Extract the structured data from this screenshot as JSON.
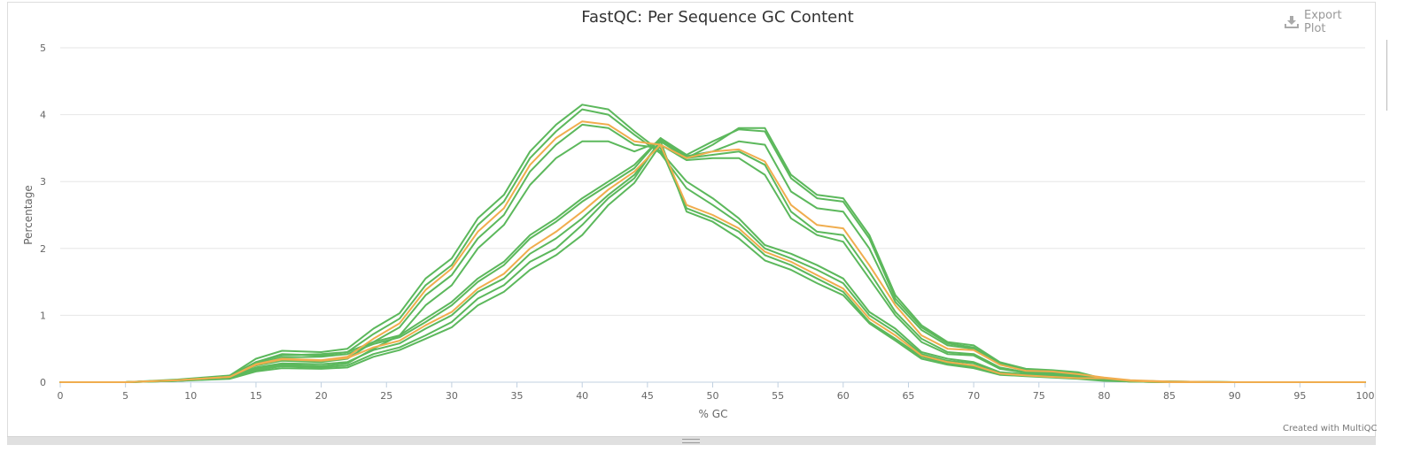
{
  "header": {
    "title": "FastQC: Per Sequence GC Content",
    "export_label": "Export Plot"
  },
  "footer": {
    "credit": "Created with MultiQC"
  },
  "colors": {
    "pass": "#5cb85c",
    "warn": "#f0ad4e",
    "grid": "#e6e6e6",
    "axis_text": "#666666"
  },
  "chart_data": {
    "type": "line",
    "title": "FastQC: Per Sequence GC Content",
    "xlabel": "% GC",
    "ylabel": "Percentage",
    "xlim": [
      0,
      100
    ],
    "ylim": [
      0,
      5
    ],
    "x_ticks": [
      0,
      5,
      10,
      15,
      20,
      25,
      30,
      35,
      40,
      45,
      50,
      55,
      60,
      65,
      70,
      75,
      80,
      85,
      90,
      95,
      100
    ],
    "y_ticks": [
      0,
      1,
      2,
      3,
      4,
      5
    ],
    "grid": true,
    "legend": "none",
    "x": [
      0,
      5,
      9,
      13,
      15,
      17,
      20,
      22,
      24,
      26,
      28,
      30,
      32,
      34,
      36,
      38,
      40,
      42,
      44,
      46,
      48,
      50,
      52,
      54,
      56,
      58,
      60,
      62,
      64,
      66,
      68,
      70,
      72,
      74,
      76,
      78,
      80,
      82,
      85,
      90,
      100
    ],
    "series": [
      {
        "status": "pass",
        "values": [
          0,
          0,
          0.04,
          0.1,
          0.35,
          0.47,
          0.45,
          0.5,
          0.8,
          1.03,
          1.55,
          1.85,
          2.45,
          2.8,
          3.45,
          3.85,
          4.15,
          4.08,
          3.75,
          3.45,
          3.0,
          2.75,
          2.45,
          2.05,
          1.92,
          1.75,
          1.55,
          1.05,
          0.8,
          0.45,
          0.35,
          0.3,
          0.15,
          0.12,
          0.1,
          0.08,
          0.04,
          0.02,
          0,
          0,
          0
        ]
      },
      {
        "status": "pass",
        "values": [
          0,
          0,
          0.03,
          0.09,
          0.3,
          0.42,
          0.4,
          0.45,
          0.72,
          0.95,
          1.45,
          1.75,
          2.35,
          2.7,
          3.35,
          3.75,
          4.08,
          4.0,
          3.7,
          3.42,
          2.9,
          2.65,
          2.38,
          2.0,
          1.85,
          1.68,
          1.48,
          1.0,
          0.75,
          0.42,
          0.32,
          0.28,
          0.14,
          0.11,
          0.09,
          0.07,
          0.03,
          0.01,
          0,
          0,
          0
        ]
      },
      {
        "status": "warn",
        "values": [
          0,
          0,
          0.03,
          0.08,
          0.27,
          0.35,
          0.33,
          0.38,
          0.65,
          0.88,
          1.38,
          1.7,
          2.25,
          2.6,
          3.25,
          3.65,
          3.9,
          3.85,
          3.6,
          3.55,
          2.65,
          2.5,
          2.3,
          1.95,
          1.8,
          1.6,
          1.4,
          0.95,
          0.7,
          0.4,
          0.3,
          0.25,
          0.13,
          0.1,
          0.08,
          0.06,
          0.06,
          0.02,
          0,
          0,
          0
        ]
      },
      {
        "status": "pass",
        "values": [
          0,
          0,
          0.03,
          0.08,
          0.25,
          0.32,
          0.3,
          0.35,
          0.6,
          0.82,
          1.3,
          1.6,
          2.15,
          2.5,
          3.15,
          3.55,
          3.85,
          3.8,
          3.55,
          3.5,
          2.6,
          2.45,
          2.25,
          1.9,
          1.75,
          1.55,
          1.35,
          0.9,
          0.65,
          0.38,
          0.28,
          0.23,
          0.12,
          0.1,
          0.08,
          0.06,
          0.03,
          0.01,
          0,
          0,
          0
        ]
      },
      {
        "status": "pass",
        "values": [
          0,
          0,
          0.02,
          0.07,
          0.2,
          0.26,
          0.24,
          0.28,
          0.5,
          0.7,
          1.15,
          1.45,
          2.0,
          2.35,
          2.95,
          3.35,
          3.6,
          3.6,
          3.45,
          3.6,
          2.55,
          2.4,
          2.15,
          1.82,
          1.68,
          1.48,
          1.3,
          0.88,
          0.62,
          0.35,
          0.26,
          0.21,
          0.11,
          0.09,
          0.07,
          0.05,
          0.02,
          0.01,
          0,
          0,
          0
        ]
      },
      {
        "status": "pass",
        "values": [
          0,
          0,
          0.03,
          0.09,
          0.3,
          0.4,
          0.42,
          0.45,
          0.6,
          0.7,
          0.95,
          1.2,
          1.55,
          1.8,
          2.2,
          2.45,
          2.75,
          3.0,
          3.25,
          3.65,
          3.35,
          3.55,
          3.8,
          3.8,
          3.1,
          2.8,
          2.75,
          2.2,
          1.3,
          0.85,
          0.6,
          0.55,
          0.3,
          0.2,
          0.18,
          0.15,
          0.05,
          0.02,
          0.01,
          0,
          0
        ]
      },
      {
        "status": "pass",
        "values": [
          0,
          0,
          0.03,
          0.08,
          0.28,
          0.37,
          0.38,
          0.42,
          0.57,
          0.67,
          0.9,
          1.15,
          1.5,
          1.75,
          2.15,
          2.4,
          2.7,
          2.95,
          3.2,
          3.65,
          3.4,
          3.6,
          3.78,
          3.75,
          3.05,
          2.75,
          2.7,
          2.15,
          1.25,
          0.82,
          0.58,
          0.52,
          0.28,
          0.19,
          0.17,
          0.14,
          0.05,
          0.02,
          0.01,
          0,
          0
        ]
      },
      {
        "status": "warn",
        "values": [
          0,
          0,
          0.03,
          0.08,
          0.26,
          0.34,
          0.32,
          0.36,
          0.52,
          0.62,
          0.85,
          1.05,
          1.4,
          1.62,
          2.0,
          2.25,
          2.55,
          2.88,
          3.15,
          3.55,
          3.35,
          3.45,
          3.48,
          3.3,
          2.65,
          2.35,
          2.3,
          1.75,
          1.15,
          0.7,
          0.5,
          0.48,
          0.26,
          0.17,
          0.16,
          0.12,
          0.07,
          0.03,
          0.01,
          0,
          0
        ]
      },
      {
        "status": "pass",
        "values": [
          0,
          0,
          0.02,
          0.07,
          0.22,
          0.28,
          0.27,
          0.3,
          0.48,
          0.58,
          0.8,
          1.0,
          1.35,
          1.55,
          1.92,
          2.15,
          2.45,
          2.8,
          3.1,
          3.6,
          3.35,
          3.4,
          3.45,
          3.25,
          2.55,
          2.25,
          2.2,
          1.65,
          1.05,
          0.65,
          0.45,
          0.42,
          0.22,
          0.15,
          0.14,
          0.1,
          0.04,
          0.01,
          0,
          0,
          0
        ]
      },
      {
        "status": "pass",
        "values": [
          0,
          0,
          0.02,
          0.06,
          0.18,
          0.24,
          0.22,
          0.25,
          0.42,
          0.52,
          0.7,
          0.9,
          1.25,
          1.45,
          1.8,
          2.0,
          2.35,
          2.75,
          3.05,
          3.62,
          3.38,
          3.45,
          3.6,
          3.55,
          2.85,
          2.6,
          2.55,
          2.0,
          1.2,
          0.78,
          0.55,
          0.5,
          0.27,
          0.18,
          0.16,
          0.13,
          0.05,
          0.02,
          0.01,
          0,
          0
        ]
      },
      {
        "status": "pass",
        "values": [
          0,
          0,
          0.02,
          0.05,
          0.16,
          0.21,
          0.2,
          0.22,
          0.38,
          0.48,
          0.65,
          0.82,
          1.15,
          1.35,
          1.68,
          1.9,
          2.2,
          2.65,
          2.98,
          3.55,
          3.32,
          3.35,
          3.35,
          3.1,
          2.45,
          2.2,
          2.1,
          1.55,
          1.0,
          0.6,
          0.42,
          0.4,
          0.2,
          0.14,
          0.12,
          0.09,
          0.03,
          0.01,
          0,
          0,
          0
        ]
      }
    ]
  }
}
